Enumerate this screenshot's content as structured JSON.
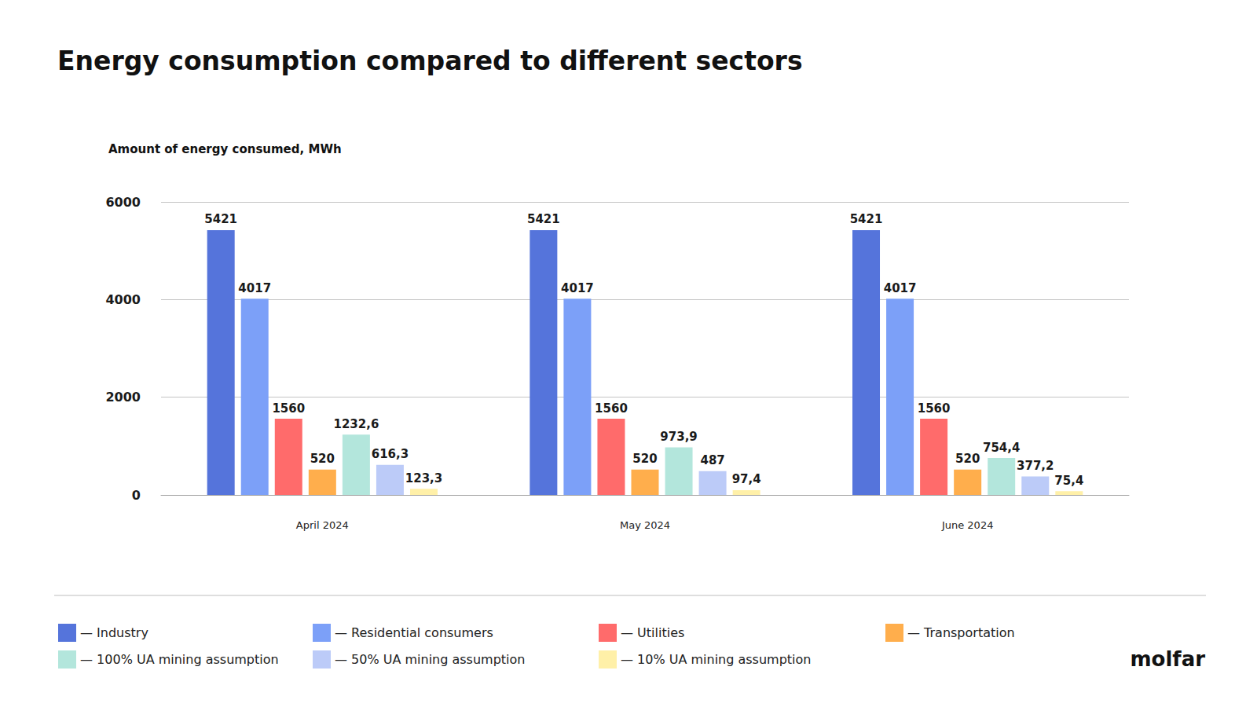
{
  "chart_data": {
    "type": "bar",
    "title": "Energy consumption compared to different sectors",
    "y_label": "Amount of energy consumed, MWh",
    "categories": [
      "April 2024",
      "May 2024",
      "June 2024"
    ],
    "series": [
      {
        "name": "— Industry",
        "color": "#5574db",
        "values": [
          5421,
          5421,
          5421
        ]
      },
      {
        "name": "— Residential consumers",
        "color": "#7ca0f8",
        "values": [
          4017,
          4017,
          4017
        ]
      },
      {
        "name": "— Utilities",
        "color": "#ff6b6b",
        "values": [
          1560,
          1560,
          1560
        ]
      },
      {
        "name": "— Transportation",
        "color": "#ffae4c",
        "values": [
          520,
          520,
          520
        ]
      },
      {
        "name": "— 100% UA mining assumption",
        "color": "#b3e6dc",
        "values": [
          1232.6,
          973.9,
          754.4
        ],
        "value_labels": [
          "1232,6",
          "973,9",
          "754,4"
        ]
      },
      {
        "name": "— 50% UA mining assumption",
        "color": "#bccbf8",
        "values": [
          616.3,
          487,
          377.2
        ],
        "value_labels": [
          "616,3",
          "487",
          "377,2"
        ]
      },
      {
        "name": "— 10% UA mining assumption",
        "color": "#fff0a8",
        "values": [
          123.3,
          97.4,
          75.4
        ],
        "value_labels": [
          "123,3",
          "97,4",
          "75,4"
        ]
      }
    ],
    "ylim": [
      0,
      6000
    ],
    "yticks": [
      0,
      2000,
      4000,
      6000
    ],
    "grid": true,
    "legend": "bottom",
    "data_labels": true,
    "annotations": [
      "molfar"
    ]
  }
}
